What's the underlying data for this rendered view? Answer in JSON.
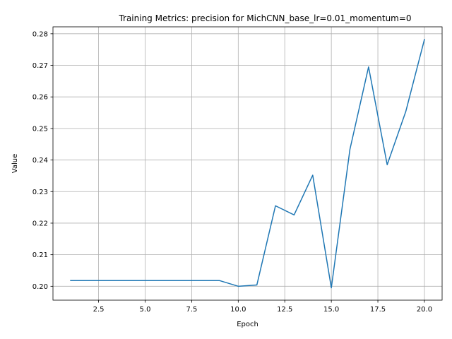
{
  "chart_data": {
    "type": "line",
    "title": "Training Metrics: precision for MichCNN_base_lr=0.01_momentum=0",
    "xlabel": "Epoch",
    "ylabel": "Value",
    "xlim": [
      0.05,
      20.95
    ],
    "ylim": [
      0.1956,
      0.2822
    ],
    "grid": true,
    "x_ticks": [
      2.5,
      5.0,
      7.5,
      10.0,
      12.5,
      15.0,
      17.5,
      20.0
    ],
    "x_tick_labels": [
      "2.5",
      "5.0",
      "7.5",
      "10.0",
      "12.5",
      "15.0",
      "17.5",
      "20.0"
    ],
    "y_ticks": [
      0.2,
      0.21,
      0.22,
      0.23,
      0.24,
      0.25,
      0.26,
      0.27,
      0.28
    ],
    "y_tick_labels": [
      "0.20",
      "0.21",
      "0.22",
      "0.23",
      "0.24",
      "0.25",
      "0.26",
      "0.27",
      "0.28"
    ],
    "series": [
      {
        "color": "#1f77b4",
        "x": [
          1,
          2,
          3,
          4,
          5,
          6,
          7,
          8,
          9,
          10,
          11,
          12,
          13,
          14,
          15,
          16,
          17,
          18,
          19,
          20
        ],
        "y": [
          0.2018,
          0.2018,
          0.2018,
          0.2018,
          0.2018,
          0.2018,
          0.2018,
          0.2018,
          0.2018,
          0.2,
          0.2004,
          0.2255,
          0.2226,
          0.2352,
          0.1995,
          0.2434,
          0.2695,
          0.2385,
          0.2554,
          0.2782
        ]
      }
    ]
  }
}
